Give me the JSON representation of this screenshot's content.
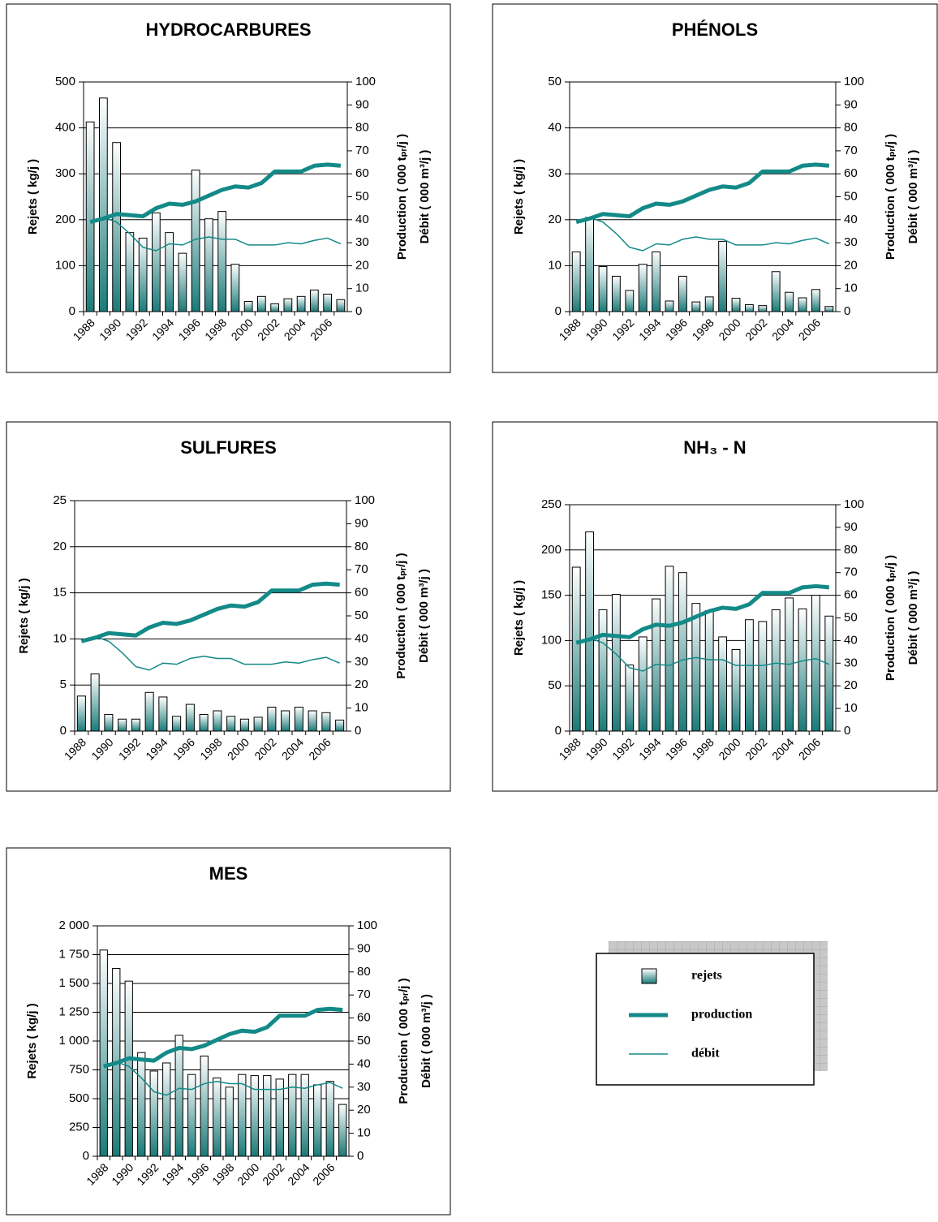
{
  "chart_data": [
    {
      "type": "bar",
      "title": "HYDROCARBURES",
      "ylabel": "Rejets ( kg/j )",
      "y2label": [
        "Production ( 000 tₚᵣ/j )",
        "Débit ( 000 m³/j )"
      ],
      "categories": [
        "1988",
        null,
        "1990",
        null,
        "1992",
        null,
        "1994",
        null,
        "1996",
        null,
        "1998",
        null,
        "2000",
        null,
        "2002",
        null,
        "2004",
        null,
        "2006",
        null
      ],
      "series": [
        {
          "name": "rejets",
          "type": "bar",
          "color": "#1a7a78",
          "values": [
            413,
            465,
            368,
            172,
            160,
            215,
            172,
            127,
            308,
            202,
            218,
            103,
            22,
            33,
            17,
            28,
            33,
            47,
            38,
            26
          ]
        },
        {
          "name": "production",
          "type": "line",
          "axis": "y2",
          "color": "#138a88",
          "values": [
            39,
            40.5,
            42.5,
            42,
            41.5,
            45,
            47,
            46.5,
            48,
            50.5,
            53,
            54.5,
            54,
            56,
            61,
            61,
            61,
            63.5,
            64,
            63.5
          ]
        },
        {
          "name": "débit",
          "type": "line",
          "axis": "y2",
          "color": "#138a88",
          "values": [
            39.5,
            41,
            39,
            34,
            28,
            26.5,
            29.5,
            29,
            31.5,
            32.5,
            31.5,
            31.5,
            29,
            29,
            29,
            30,
            29.5,
            31,
            32,
            29.5
          ]
        }
      ],
      "ylim": [
        0,
        500
      ],
      "yticks": [
        0,
        100,
        200,
        300,
        400,
        500
      ],
      "y2lim": [
        0,
        100
      ],
      "y2ticks": [
        0,
        10,
        20,
        30,
        40,
        50,
        60,
        70,
        80,
        90,
        100
      ],
      "grid": true
    },
    {
      "type": "bar",
      "title": "PHÉNOLS",
      "ylabel": "Rejets ( kg/j )",
      "y2label": [
        "Production ( 000 tₚᵣ/j )",
        "Débit ( 000 m³/j )"
      ],
      "categories": [
        "1988",
        null,
        "1990",
        null,
        "1992",
        null,
        "1994",
        null,
        "1996",
        null,
        "1998",
        null,
        "2000",
        null,
        "2002",
        null,
        "2004",
        null,
        "2006",
        null
      ],
      "series": [
        {
          "name": "rejets",
          "type": "bar",
          "color": "#1a7a78",
          "values": [
            13,
            20.5,
            9.8,
            7.7,
            4.6,
            10.3,
            13,
            2.3,
            7.7,
            2.1,
            3.2,
            15.3,
            2.9,
            1.5,
            1.3,
            8.7,
            4.2,
            3,
            4.8,
            1.1
          ]
        },
        {
          "name": "production",
          "type": "line",
          "axis": "y2",
          "color": "#138a88",
          "values": [
            39,
            40.5,
            42.5,
            42,
            41.5,
            45,
            47,
            46.5,
            48,
            50.5,
            53,
            54.5,
            54,
            56,
            61,
            61,
            61,
            63.5,
            64,
            63.5
          ]
        },
        {
          "name": "débit",
          "type": "line",
          "axis": "y2",
          "color": "#138a88",
          "values": [
            39.5,
            41,
            39,
            34,
            28,
            26.5,
            29.5,
            29,
            31.5,
            32.5,
            31.5,
            31.5,
            29,
            29,
            29,
            30,
            29.5,
            31,
            32,
            29.5
          ]
        }
      ],
      "ylim": [
        0,
        50
      ],
      "yticks": [
        0,
        10,
        20,
        30,
        40,
        50
      ],
      "y2lim": [
        0,
        100
      ],
      "y2ticks": [
        0,
        10,
        20,
        30,
        40,
        50,
        60,
        70,
        80,
        90,
        100
      ],
      "grid": true
    },
    {
      "type": "bar",
      "title": "SULFURES",
      "ylabel": "Rejets ( kg/j )",
      "y2label": [
        "Production ( 000 tₚᵣ/j )",
        "Débit ( 000 m³/j )"
      ],
      "categories": [
        "1988",
        null,
        "1990",
        null,
        "1992",
        null,
        "1994",
        null,
        "1996",
        null,
        "1998",
        null,
        "2000",
        null,
        "2002",
        null,
        "2004",
        null,
        "2006",
        null
      ],
      "series": [
        {
          "name": "rejets",
          "type": "bar",
          "color": "#1a7a78",
          "values": [
            3.8,
            6.2,
            1.8,
            1.3,
            1.3,
            4.2,
            3.7,
            1.6,
            2.9,
            1.8,
            2.2,
            1.6,
            1.3,
            1.5,
            2.6,
            2.2,
            2.6,
            2.2,
            2,
            1.2
          ]
        },
        {
          "name": "production",
          "type": "line",
          "axis": "y2",
          "color": "#138a88",
          "values": [
            39,
            40.5,
            42.5,
            42,
            41.5,
            45,
            47,
            46.5,
            48,
            50.5,
            53,
            54.5,
            54,
            56,
            61,
            61,
            61,
            63.5,
            64,
            63.5
          ]
        },
        {
          "name": "débit",
          "type": "line",
          "axis": "y2",
          "color": "#138a88",
          "values": [
            39.5,
            41,
            39,
            34,
            28,
            26.5,
            29.5,
            29,
            31.5,
            32.5,
            31.5,
            31.5,
            29,
            29,
            29,
            30,
            29.5,
            31,
            32,
            29.5
          ]
        }
      ],
      "ylim": [
        0,
        25
      ],
      "yticks": [
        0,
        5,
        10,
        15,
        20,
        25
      ],
      "y2lim": [
        0,
        100
      ],
      "y2ticks": [
        0,
        10,
        20,
        30,
        40,
        50,
        60,
        70,
        80,
        90,
        100
      ],
      "grid": true
    },
    {
      "type": "bar",
      "title": "NH₃ - N",
      "ylabel": "Rejets ( kg/j )",
      "y2label": [
        "Production ( 000 tₚᵣ/j )",
        "Débit ( 000 m³/j )"
      ],
      "categories": [
        "1988",
        null,
        "1990",
        null,
        "1992",
        null,
        "1994",
        null,
        "1996",
        null,
        "1998",
        null,
        "2000",
        null,
        "2002",
        null,
        "2004",
        null,
        "2006",
        null
      ],
      "series": [
        {
          "name": "rejets",
          "type": "bar",
          "color": "#1a7a78",
          "values": [
            181,
            220,
            134,
            151,
            73,
            104,
            146,
            182,
            175,
            141,
            133,
            104,
            90,
            123,
            121,
            134,
            147,
            135,
            150,
            127
          ]
        },
        {
          "name": "production",
          "type": "line",
          "axis": "y2",
          "color": "#138a88",
          "values": [
            39,
            40.5,
            42.5,
            42,
            41.5,
            45,
            47,
            46.5,
            48,
            50.5,
            53,
            54.5,
            54,
            56,
            61,
            61,
            61,
            63.5,
            64,
            63.5
          ]
        },
        {
          "name": "débit",
          "type": "line",
          "axis": "y2",
          "color": "#138a88",
          "values": [
            39.5,
            41,
            39,
            34,
            28,
            26.5,
            29.5,
            29,
            31.5,
            32.5,
            31.5,
            31.5,
            29,
            29,
            29,
            30,
            29.5,
            31,
            32,
            29.5
          ]
        }
      ],
      "ylim": [
        0,
        250
      ],
      "yticks": [
        0,
        50,
        100,
        150,
        200,
        250
      ],
      "y2lim": [
        0,
        100
      ],
      "y2ticks": [
        0,
        10,
        20,
        30,
        40,
        50,
        60,
        70,
        80,
        90,
        100
      ],
      "grid": true
    },
    {
      "type": "bar",
      "title": "MES",
      "ylabel": "Rejets ( kg/j )",
      "y2label": [
        "Production ( 000 tₚᵣ/j )",
        "Débit ( 000 m³/j )"
      ],
      "categories": [
        "1988",
        null,
        "1990",
        null,
        "1992",
        null,
        "1994",
        null,
        "1996",
        null,
        "1998",
        null,
        "2000",
        null,
        "2002",
        null,
        "2004",
        null,
        "2006",
        null
      ],
      "series": [
        {
          "name": "rejets",
          "type": "bar",
          "color": "#1a7a78",
          "values": [
            1790,
            1630,
            1520,
            900,
            740,
            810,
            1050,
            710,
            870,
            680,
            600,
            710,
            700,
            700,
            670,
            710,
            710,
            620,
            650,
            450
          ]
        },
        {
          "name": "production",
          "type": "line",
          "axis": "y2",
          "color": "#138a88",
          "values": [
            39,
            40.5,
            42.5,
            42,
            41.5,
            45,
            47,
            46.5,
            48,
            50.5,
            53,
            54.5,
            54,
            56,
            61,
            61,
            61,
            63.5,
            64,
            63.5
          ]
        },
        {
          "name": "débit",
          "type": "line",
          "axis": "y2",
          "color": "#138a88",
          "values": [
            39.5,
            41,
            39,
            34,
            28,
            26.5,
            29.5,
            29,
            31.5,
            32.5,
            31.5,
            31.5,
            29,
            29,
            29,
            30,
            29.5,
            31,
            32,
            29.5
          ]
        }
      ],
      "ylim": [
        0,
        2000
      ],
      "yticks": [
        0,
        250,
        500,
        750,
        {
          "value": 1000,
          "label": "1 000"
        },
        {
          "value": 1250,
          "label": "1 250"
        },
        {
          "value": 1500,
          "label": "1 500"
        },
        {
          "value": 1750,
          "label": "1 750"
        },
        {
          "value": 2000,
          "label": "2 000"
        }
      ],
      "y2lim": [
        0,
        100
      ],
      "y2ticks": [
        0,
        10,
        20,
        30,
        40,
        50,
        60,
        70,
        80,
        90,
        100
      ],
      "grid": true
    }
  ]
}
